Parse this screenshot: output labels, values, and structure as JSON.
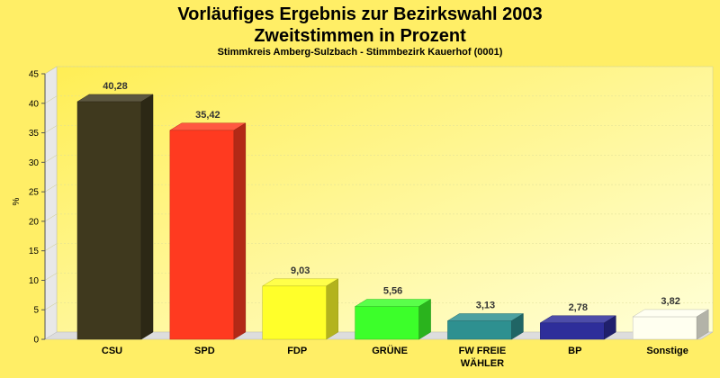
{
  "chart_data": {
    "type": "bar",
    "title": "Vorläufiges Ergebnis zur Bezirkswahl 2003",
    "title_line2": "Zweitstimmen in Prozent",
    "subtitle": "Stimmkreis Amberg-Sulzbach - Stimmbezirk Kauerhof (0001)",
    "ylabel": "%",
    "xlabel": "",
    "ylim": [
      0,
      45
    ],
    "yticks": [
      0,
      5,
      10,
      15,
      20,
      25,
      30,
      35,
      40,
      45
    ],
    "grid": true,
    "categories": [
      "CSU",
      "SPD",
      "FDP",
      "GRÜNE",
      "FW FREIE WÄHLER",
      "BP",
      "Sonstige"
    ],
    "category_lines": [
      [
        "CSU"
      ],
      [
        "SPD"
      ],
      [
        "FDP"
      ],
      [
        "GRÜNE"
      ],
      [
        "FW FREIE",
        "WÄHLER"
      ],
      [
        "BP"
      ],
      [
        "Sonstige"
      ]
    ],
    "values": [
      40.28,
      35.42,
      9.03,
      5.56,
      3.13,
      2.78,
      3.82
    ],
    "value_labels": [
      "40,28",
      "35,42",
      "9,03",
      "5,56",
      "3,13",
      "2,78",
      "3,82"
    ],
    "colors": [
      "#3F391E",
      "#FF3A20",
      "#FFFF2A",
      "#3CFF2A",
      "#2E9090",
      "#2E2E9A",
      "#FFFFF0"
    ]
  }
}
